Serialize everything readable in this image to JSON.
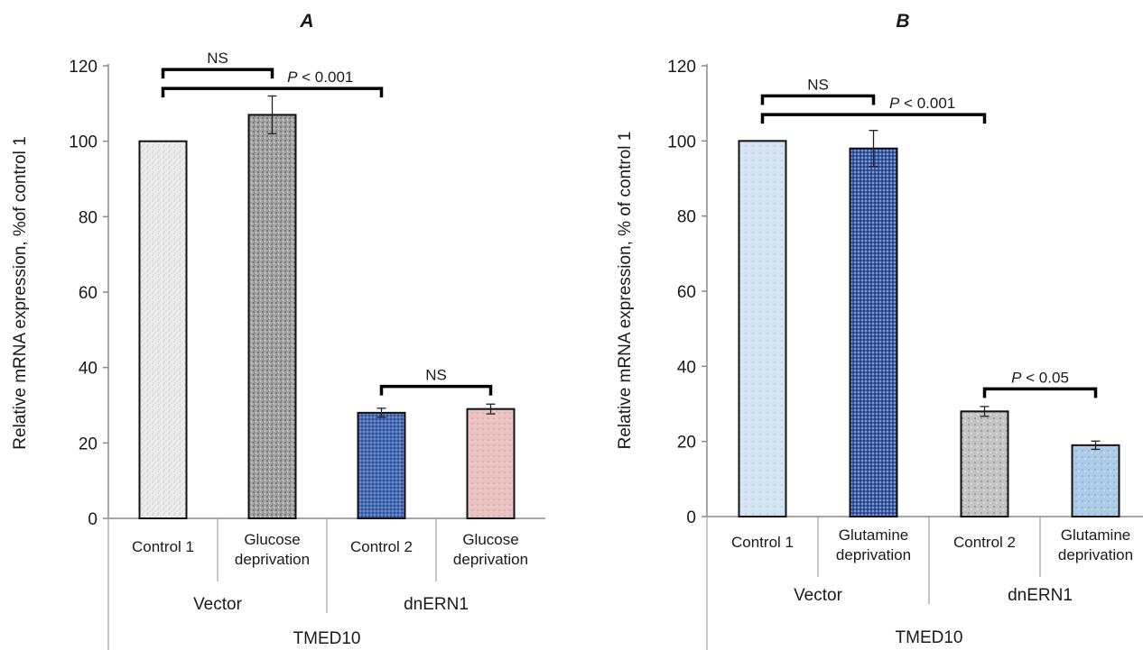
{
  "chart_data": [
    {
      "type": "bar",
      "panel_label": "A",
      "title": "",
      "ylabel": "Relative mRNA expression, %of control 1",
      "xlabel": "TMED10",
      "ylim": [
        0,
        120
      ],
      "yticks": [
        "0",
        "20",
        "40",
        "60",
        "80",
        "100",
        "120"
      ],
      "categories": [
        {
          "line1": "Control 1",
          "line2": "",
          "group": "Vector"
        },
        {
          "line1": "Glucose",
          "line2": "deprivation",
          "group": "Vector"
        },
        {
          "line1": "Control 2",
          "line2": "",
          "group": "dnERN1"
        },
        {
          "line1": "Glucose",
          "line2": "deprivation",
          "group": "dnERN1"
        }
      ],
      "groups": [
        "Vector",
        "dnERN1"
      ],
      "values": [
        100,
        107,
        28,
        29
      ],
      "errors": [
        0,
        5,
        1.2,
        1.3
      ],
      "colors": [
        "#e6e6e6",
        "#9a9a9a",
        "#4a6fb5",
        "#e8b8b8"
      ],
      "annotations": [
        {
          "label": "NS",
          "from": 0,
          "to": 1,
          "y": 119
        },
        {
          "label": "P < 0.001",
          "from": 0,
          "to": 2,
          "y": 114
        },
        {
          "label": "NS",
          "from": 2,
          "to": 3,
          "y": 35
        }
      ]
    },
    {
      "type": "bar",
      "panel_label": "B",
      "title": "",
      "ylabel": "Relative mRNA expression, % of control 1",
      "xlabel": "TMED10",
      "ylim": [
        0,
        120
      ],
      "yticks": [
        "0",
        "20",
        "40",
        "60",
        "80",
        "100",
        "120"
      ],
      "categories": [
        {
          "line1": "Control 1",
          "line2": "",
          "group": "Vector"
        },
        {
          "line1": "Glutamine",
          "line2": "deprivation",
          "group": "Vector"
        },
        {
          "line1": "Control 2",
          "line2": "",
          "group": "dnERN1"
        },
        {
          "line1": "Glutamine",
          "line2": "deprivation",
          "group": "dnERN1"
        }
      ],
      "groups": [
        "Vector",
        "dnERN1"
      ],
      "values": [
        100,
        98,
        28,
        19
      ],
      "errors": [
        0,
        4.8,
        1.3,
        1.1
      ],
      "colors": [
        "#cfe0f0",
        "#3f5fa8",
        "#b8b8b8",
        "#a9c8e6"
      ],
      "annotations": [
        {
          "label": "NS",
          "from": 0,
          "to": 1,
          "y": 112
        },
        {
          "label": "P < 0.001",
          "from": 0,
          "to": 2,
          "y": 107
        },
        {
          "label": "P < 0.05",
          "from": 2,
          "to": 3,
          "y": 34
        }
      ]
    }
  ]
}
